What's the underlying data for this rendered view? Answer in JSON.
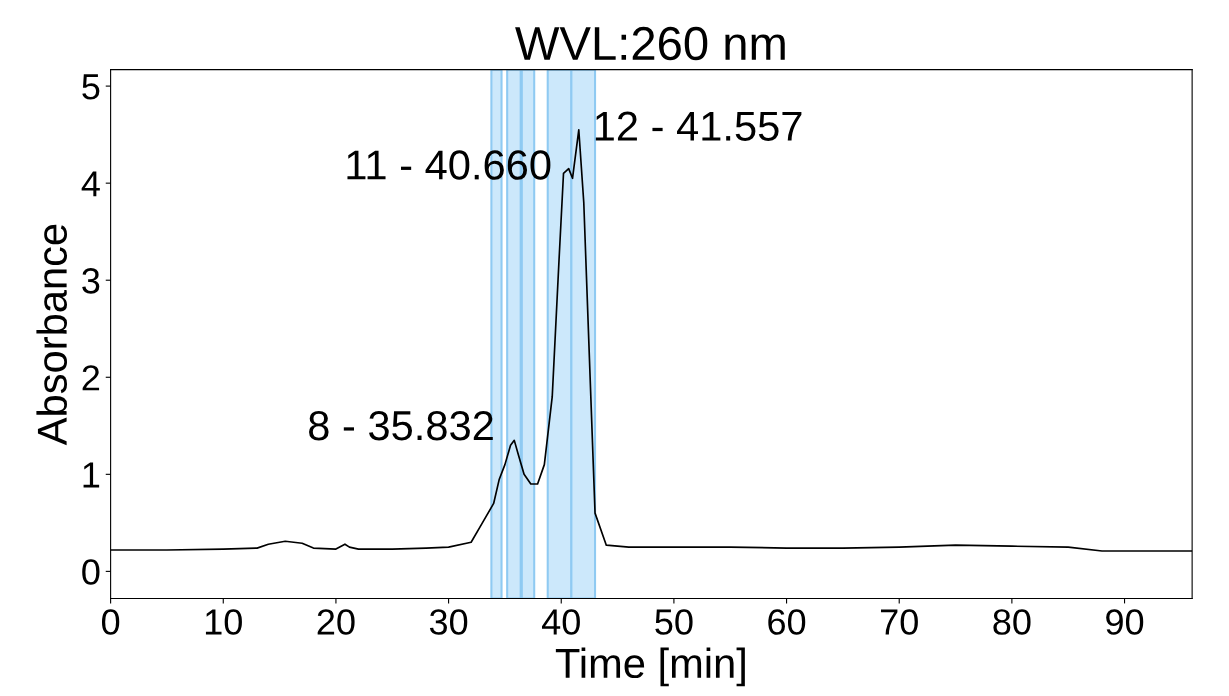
{
  "chart_data": {
    "type": "line",
    "title": "WVL:260 nm",
    "xlabel": "Time [min]",
    "ylabel": "Absorbance",
    "xlim": [
      0,
      96
    ],
    "ylim": [
      -0.28,
      5.17
    ],
    "xticks": [
      0,
      10,
      20,
      30,
      40,
      50,
      60,
      70,
      80,
      90
    ],
    "yticks": [
      0,
      1,
      2,
      3,
      4,
      5
    ],
    "grid": false,
    "legend": false,
    "marker": "none",
    "line_style": "solid",
    "series": [
      {
        "color": "#000000",
        "x": [
          0,
          5,
          10,
          13,
          14,
          15.5,
          17,
          18,
          20,
          20.8,
          21.2,
          22,
          25,
          28,
          30,
          32,
          33,
          34,
          34.5,
          35,
          35.5,
          35.832,
          36.2,
          36.7,
          37.3,
          37.9,
          38.5,
          39.2,
          39.8,
          40.2,
          40.66,
          41,
          41.557,
          42,
          42.5,
          43,
          44,
          46,
          50,
          55,
          60,
          65,
          70,
          75,
          80,
          85,
          88,
          90,
          96
        ],
        "values": [
          0.22,
          0.22,
          0.23,
          0.24,
          0.28,
          0.31,
          0.29,
          0.24,
          0.23,
          0.28,
          0.25,
          0.23,
          0.23,
          0.24,
          0.25,
          0.3,
          0.5,
          0.7,
          0.95,
          1.1,
          1.3,
          1.35,
          1.2,
          1.0,
          0.9,
          0.9,
          1.1,
          1.8,
          3.2,
          4.1,
          4.15,
          4.05,
          4.55,
          3.8,
          2.2,
          0.6,
          0.27,
          0.25,
          0.25,
          0.25,
          0.24,
          0.24,
          0.25,
          0.27,
          0.26,
          0.25,
          0.21,
          0.21,
          0.21
        ]
      }
    ],
    "bands": [
      {
        "axis": "x",
        "from": 33.8,
        "to": 34.7,
        "color": "#cce8fb"
      },
      {
        "axis": "x",
        "from": 35.2,
        "to": 36.4,
        "color": "#cce8fb"
      },
      {
        "axis": "x",
        "from": 36.5,
        "to": 37.6,
        "color": "#cce8fb"
      },
      {
        "axis": "x",
        "from": 38.8,
        "to": 40.9,
        "color": "#cce8fb"
      },
      {
        "axis": "x",
        "from": 40.9,
        "to": 43.0,
        "color": "#cce8fb"
      }
    ],
    "annotations": [
      {
        "text": "12 - 41.557",
        "x": 41.557,
        "y": 4.55
      },
      {
        "text": "11 - 40.660",
        "x": 40.66,
        "y": 4.15
      },
      {
        "text": "8 - 35.832",
        "x": 35.832,
        "y": 1.35
      }
    ]
  }
}
